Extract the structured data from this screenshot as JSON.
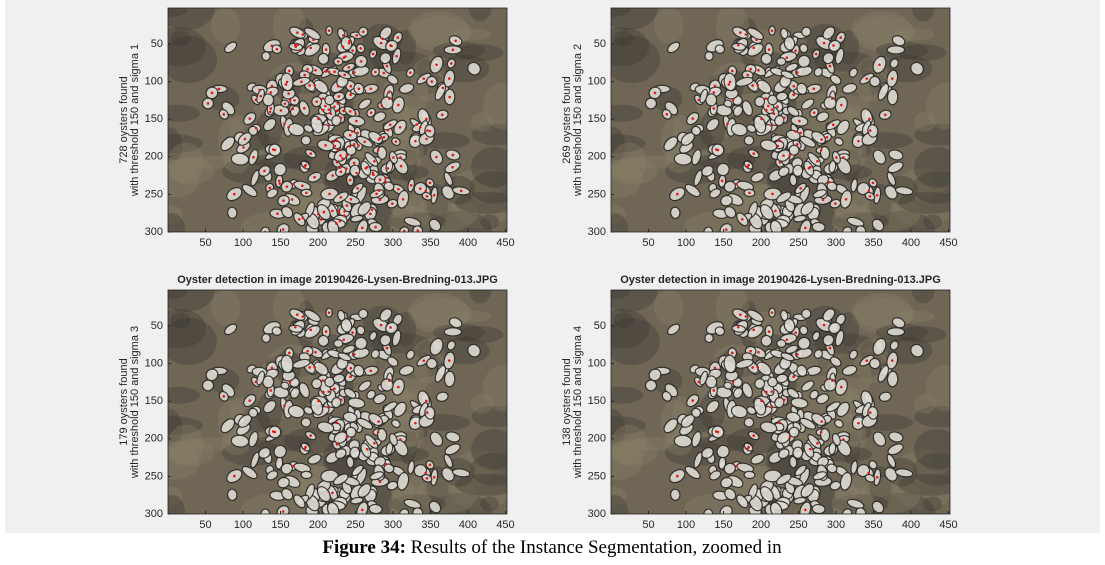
{
  "axes": {
    "xlim": [
      0,
      452
    ],
    "ylim": [
      2,
      300
    ],
    "xticks": [
      50,
      100,
      150,
      200,
      250,
      300,
      350,
      400,
      450
    ],
    "yticks": [
      50,
      100,
      150,
      200,
      250,
      300
    ]
  },
  "panels": [
    {
      "ylabel": [
        "728 oysters found",
        "with threshold 150 and sigma 1"
      ]
    },
    {
      "ylabel": [
        "269 oysters found",
        "with threshold 150 and sigma 2"
      ]
    },
    {
      "title": "Oyster detection in image 20190426-Lysen-Bredning-013.JPG",
      "ylabel": [
        "179 oysters found",
        "with threshold 150 and sigma 3"
      ]
    },
    {
      "title": "Oyster detection in image 20190426-Lysen-Bredning-013.JPG",
      "ylabel": [
        "138 oysters found",
        "with threshold 150 and sigma 4"
      ]
    }
  ],
  "caption": {
    "label": "Figure 34:",
    "text": "Results of the Instance Segmentation, zoomed in"
  }
}
